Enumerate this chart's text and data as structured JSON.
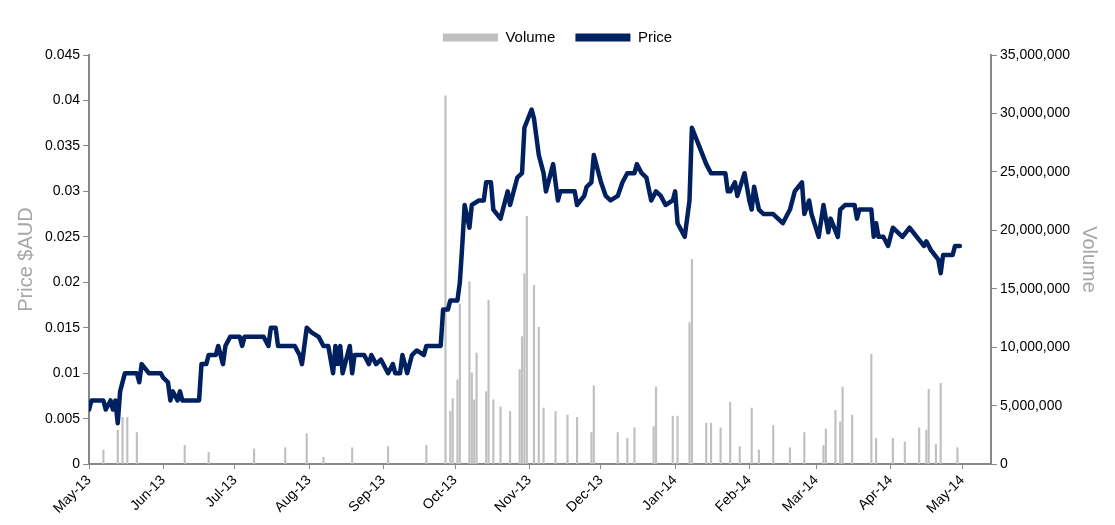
{
  "chart_data": {
    "type": "line",
    "ylabel": "Price $AUD",
    "y2label": "Volume",
    "legend": "top",
    "grid": false,
    "xlim": [
      "2013-05-01",
      "2014-05-13"
    ],
    "xticks": [
      {
        "value": "2013-05-01",
        "label": "May-13"
      },
      {
        "value": "2013-06-01",
        "label": "Jun-13"
      },
      {
        "value": "2013-07-01",
        "label": "Jul-13"
      },
      {
        "value": "2013-08-01",
        "label": "Aug-13"
      },
      {
        "value": "2013-09-01",
        "label": "Sep-13"
      },
      {
        "value": "2013-10-01",
        "label": "Oct-13"
      },
      {
        "value": "2013-11-01",
        "label": "Nov-13"
      },
      {
        "value": "2013-12-01",
        "label": "Dec-13"
      },
      {
        "value": "2014-01-01",
        "label": "Jan-14"
      },
      {
        "value": "2014-02-01",
        "label": "Feb-14"
      },
      {
        "value": "2014-03-01",
        "label": "Mar-14"
      },
      {
        "value": "2014-04-01",
        "label": "Apr-14"
      },
      {
        "value": "2014-05-01",
        "label": "May-14"
      }
    ],
    "ylim": [
      0,
      0.045
    ],
    "yticks": [
      0,
      0.005,
      0.01,
      0.015,
      0.02,
      0.025,
      0.03,
      0.035,
      0.04,
      0.045
    ],
    "y2lim": [
      0,
      35000000
    ],
    "y2ticks": [
      0,
      {
        "value": 5000000,
        "label": "5,000,000"
      },
      {
        "value": 10000000,
        "label": "10,000,000"
      },
      {
        "value": 15000000,
        "label": "15,000,000"
      },
      {
        "value": 20000000,
        "label": "20,000,000"
      },
      {
        "value": 25000000,
        "label": "25,000,000"
      },
      {
        "value": 30000000,
        "label": "30,000,000"
      },
      {
        "value": 35000000,
        "label": "35,000,000"
      }
    ],
    "series": [
      {
        "name": "Volume",
        "type": "bar",
        "axis": "y2",
        "color": "#c0c0c0",
        "x": [
          "2013-05-07",
          "2013-05-13",
          "2013-05-15",
          "2013-05-17",
          "2013-05-21",
          "2013-06-10",
          "2013-06-20",
          "2013-07-09",
          "2013-07-22",
          "2013-07-31",
          "2013-08-07",
          "2013-08-19",
          "2013-09-03",
          "2013-09-19",
          "2013-09-27",
          "2013-09-29",
          "2013-09-30",
          "2013-10-02",
          "2013-10-03",
          "2013-10-07",
          "2013-10-08",
          "2013-10-09",
          "2013-10-10",
          "2013-10-14",
          "2013-10-15",
          "2013-10-17",
          "2013-10-20",
          "2013-10-24",
          "2013-10-28",
          "2013-10-29",
          "2013-10-30",
          "2013-10-31",
          "2013-11-03",
          "2013-11-05",
          "2013-11-07",
          "2013-11-12",
          "2013-11-17",
          "2013-11-21",
          "2013-11-27",
          "2013-11-28",
          "2013-12-08",
          "2013-12-12",
          "2013-12-15",
          "2013-12-23",
          "2013-12-24",
          "2013-12-31",
          "2014-01-02",
          "2014-01-07",
          "2014-01-08",
          "2014-01-14",
          "2014-01-16",
          "2014-01-20",
          "2014-01-24",
          "2014-01-28",
          "2014-02-02",
          "2014-02-05",
          "2014-02-11",
          "2014-02-18",
          "2014-02-24",
          "2014-03-04",
          "2014-03-05",
          "2014-03-09",
          "2014-03-11",
          "2014-03-12",
          "2014-03-16",
          "2014-03-24",
          "2014-03-26",
          "2014-04-02",
          "2014-04-07",
          "2014-04-13",
          "2014-04-16",
          "2014-04-17",
          "2014-04-20",
          "2014-04-22",
          "2014-04-29"
        ],
        "values": [
          1200000,
          2900000,
          4000000,
          4000000,
          2700000,
          1600000,
          1000000,
          1300000,
          1400000,
          2600000,
          600000,
          1400000,
          1500000,
          1600000,
          31500000,
          4500000,
          5600000,
          7200000,
          13700000,
          15600000,
          7800000,
          5500000,
          9500000,
          6200000,
          14000000,
          5500000,
          4900000,
          4500000,
          8100000,
          10900000,
          16300000,
          21200000,
          15300000,
          11700000,
          4800000,
          4500000,
          4200000,
          4000000,
          2700000,
          6700000,
          2700000,
          2200000,
          3100000,
          3200000,
          6600000,
          4100000,
          4100000,
          12100000,
          17500000,
          3500000,
          3500000,
          3100000,
          5300000,
          1500000,
          4800000,
          1200000,
          3300000,
          1400000,
          2700000,
          1600000,
          3000000,
          4600000,
          3600000,
          6600000,
          4200000,
          9400000,
          2200000,
          2200000,
          1900000,
          3100000,
          2900000,
          6400000,
          1700000,
          6900000,
          1400000
        ]
      },
      {
        "name": "Price",
        "color": "#002060",
        "x": [
          "2013-05-01",
          "2013-05-02",
          "2013-05-07",
          "2013-05-08",
          "2013-05-10",
          "2013-05-11",
          "2013-05-12",
          "2013-05-13",
          "2013-05-14",
          "2013-05-16",
          "2013-05-21",
          "2013-05-22",
          "2013-05-23",
          "2013-05-26",
          "2013-05-31",
          "2013-06-01",
          "2013-06-03",
          "2013-06-04",
          "2013-06-05",
          "2013-06-07",
          "2013-06-08",
          "2013-06-09",
          "2013-06-16",
          "2013-06-17",
          "2013-06-19",
          "2013-06-20",
          "2013-06-23",
          "2013-06-24",
          "2013-06-26",
          "2013-06-27",
          "2013-06-29",
          "2013-07-03",
          "2013-07-04",
          "2013-07-05",
          "2013-07-13",
          "2013-07-15",
          "2013-07-16",
          "2013-07-18",
          "2013-07-19",
          "2013-07-26",
          "2013-07-28",
          "2013-07-29",
          "2013-07-31",
          "2013-08-02",
          "2013-08-05",
          "2013-08-07",
          "2013-08-09",
          "2013-08-11",
          "2013-08-12",
          "2013-08-13",
          "2013-08-14",
          "2013-08-15",
          "2013-08-18",
          "2013-08-19",
          "2013-08-20",
          "2013-08-24",
          "2013-08-26",
          "2013-08-27",
          "2013-08-29",
          "2013-08-31",
          "2013-09-03",
          "2013-09-05",
          "2013-09-06",
          "2013-09-08",
          "2013-09-09",
          "2013-09-11",
          "2013-09-13",
          "2013-09-15",
          "2013-09-18",
          "2013-09-19",
          "2013-09-25",
          "2013-09-26",
          "2013-09-28",
          "2013-09-29",
          "2013-10-02",
          "2013-10-03",
          "2013-10-04",
          "2013-10-05",
          "2013-10-07",
          "2013-10-08",
          "2013-10-11",
          "2013-10-13",
          "2013-10-14",
          "2013-10-16",
          "2013-10-17",
          "2013-10-20",
          "2013-10-23",
          "2013-10-24",
          "2013-10-27",
          "2013-10-29",
          "2013-10-30",
          "2013-11-02",
          "2013-11-03",
          "2013-11-05",
          "2013-11-07",
          "2013-11-08",
          "2013-11-11",
          "2013-11-13",
          "2013-11-14",
          "2013-11-20",
          "2013-11-21",
          "2013-11-24",
          "2013-11-25",
          "2013-11-27",
          "2013-11-28",
          "2013-12-01",
          "2013-12-03",
          "2013-12-05",
          "2013-12-08",
          "2013-12-10",
          "2013-12-12",
          "2013-12-15",
          "2013-12-16",
          "2013-12-18",
          "2013-12-20",
          "2013-12-22",
          "2013-12-24",
          "2013-12-26",
          "2013-12-28",
          "2013-12-31",
          "2014-01-01",
          "2014-01-02",
          "2014-01-05",
          "2014-01-07",
          "2014-01-08",
          "2014-01-11",
          "2014-01-14",
          "2014-01-16",
          "2014-01-22",
          "2014-01-23",
          "2014-01-24",
          "2014-01-26",
          "2014-01-27",
          "2014-01-30",
          "2014-02-01",
          "2014-02-02",
          "2014-02-03",
          "2014-02-05",
          "2014-02-07",
          "2014-02-11",
          "2014-02-13",
          "2014-02-15",
          "2014-02-18",
          "2014-02-20",
          "2014-02-23",
          "2014-02-24",
          "2014-02-26",
          "2014-02-27",
          "2014-03-02",
          "2014-03-04",
          "2014-03-06",
          "2014-03-07",
          "2014-03-10",
          "2014-03-11",
          "2014-03-13",
          "2014-03-17",
          "2014-03-18",
          "2014-03-19",
          "2014-03-24",
          "2014-03-25",
          "2014-03-26",
          "2014-03-27",
          "2014-03-29",
          "2014-03-31",
          "2014-04-02",
          "2014-04-06",
          "2014-04-09",
          "2014-04-12",
          "2014-04-15",
          "2014-04-16",
          "2014-04-18",
          "2014-04-21",
          "2014-04-22",
          "2014-04-23",
          "2014-04-27",
          "2014-04-28",
          "2014-04-30"
        ],
        "values": [
          0.006,
          0.007,
          0.007,
          0.006,
          0.007,
          0.006,
          0.007,
          0.0045,
          0.008,
          0.01,
          0.01,
          0.009,
          0.011,
          0.01,
          0.01,
          0.0095,
          0.009,
          0.007,
          0.008,
          0.007,
          0.008,
          0.007,
          0.007,
          0.011,
          0.011,
          0.012,
          0.012,
          0.013,
          0.011,
          0.013,
          0.014,
          0.014,
          0.013,
          0.014,
          0.014,
          0.013,
          0.015,
          0.015,
          0.013,
          0.013,
          0.012,
          0.011,
          0.015,
          0.0145,
          0.014,
          0.013,
          0.013,
          0.01,
          0.013,
          0.011,
          0.013,
          0.01,
          0.013,
          0.01,
          0.012,
          0.012,
          0.011,
          0.012,
          0.011,
          0.0115,
          0.01,
          0.011,
          0.01,
          0.01,
          0.012,
          0.01,
          0.012,
          0.0125,
          0.012,
          0.013,
          0.013,
          0.017,
          0.017,
          0.018,
          0.018,
          0.02,
          0.024,
          0.0285,
          0.026,
          0.0285,
          0.029,
          0.029,
          0.031,
          0.031,
          0.028,
          0.027,
          0.03,
          0.0285,
          0.0315,
          0.032,
          0.037,
          0.039,
          0.038,
          0.034,
          0.032,
          0.03,
          0.033,
          0.029,
          0.03,
          0.03,
          0.0285,
          0.0295,
          0.0305,
          0.031,
          0.034,
          0.031,
          0.0295,
          0.029,
          0.0295,
          0.031,
          0.032,
          0.032,
          0.033,
          0.032,
          0.0315,
          0.029,
          0.03,
          0.0295,
          0.0285,
          0.029,
          0.03,
          0.0265,
          0.025,
          0.029,
          0.037,
          0.035,
          0.033,
          0.032,
          0.032,
          0.03,
          0.03,
          0.031,
          0.0295,
          0.032,
          0.029,
          0.028,
          0.0305,
          0.028,
          0.0275,
          0.0275,
          0.027,
          0.0265,
          0.028,
          0.03,
          0.031,
          0.0275,
          0.029,
          0.0275,
          0.025,
          0.0285,
          0.0255,
          0.027,
          0.025,
          0.028,
          0.0285,
          0.0285,
          0.027,
          0.028,
          0.028,
          0.025,
          0.0265,
          0.025,
          0.025,
          0.024,
          0.026,
          0.025,
          0.026,
          0.025,
          0.024,
          0.0245,
          0.0235,
          0.0225,
          0.021,
          0.023,
          0.023,
          0.024,
          0.024
        ]
      }
    ]
  }
}
